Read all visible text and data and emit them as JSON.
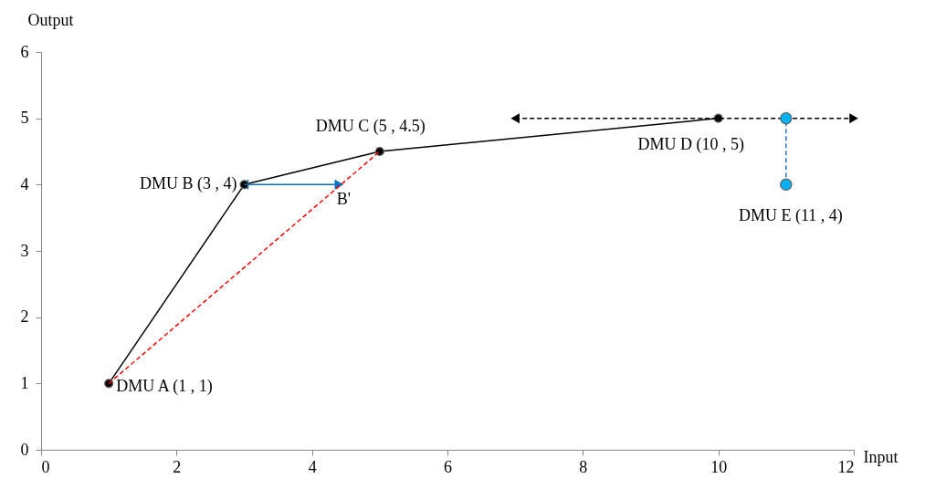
{
  "chart_data": {
    "type": "line",
    "xlabel": "Input",
    "ylabel": "Output",
    "xlim": [
      0,
      12
    ],
    "xticks": [
      0,
      2,
      4,
      6,
      8,
      10,
      12
    ],
    "ylim": [
      0,
      6
    ],
    "yticks": [
      0,
      1,
      2,
      3,
      4,
      5,
      6
    ],
    "grid": false,
    "series": [
      {
        "color": "#000000",
        "x": [
          1,
          3,
          5,
          10
        ],
        "values": [
          1,
          4,
          4.5,
          5
        ],
        "marker": "circle",
        "line_style": "solid"
      },
      {
        "color": "#ff0000",
        "x": [
          1,
          5
        ],
        "values": [
          1,
          4.5
        ],
        "marker": "none",
        "line_style": "dashed"
      },
      {
        "color": "#0070c0",
        "x": [
          3,
          4.4
        ],
        "values": [
          4,
          4
        ],
        "marker": "triangle",
        "line_style": "solid"
      },
      {
        "color": "#000000",
        "x": [
          7,
          12
        ],
        "values": [
          5,
          5
        ],
        "marker": "triangle",
        "line_style": "dashed"
      },
      {
        "color": "#2e75b6",
        "x": [
          11,
          11
        ],
        "values": [
          4,
          5
        ],
        "marker": "none",
        "line_style": "dashed"
      },
      {
        "type": "scatter",
        "color": "#00b0f0",
        "x": [
          11,
          11
        ],
        "values": [
          4,
          5
        ],
        "marker": "circle"
      }
    ],
    "annotations": [
      {
        "text": "DMU A (1 , 1)",
        "x": 1,
        "y": 1
      },
      {
        "text": "DMU B (3 , 4)",
        "x": 3,
        "y": 4
      },
      {
        "text": "DMU C (5 , 4.5)",
        "x": 5,
        "y": 4.5
      },
      {
        "text": "DMU D (10 , 5)",
        "x": 10,
        "y": 5
      },
      {
        "text": "DMU E (11 , 4)",
        "x": 11,
        "y": 4
      },
      {
        "text": "B'",
        "x": 4.4,
        "y": 4
      }
    ]
  }
}
